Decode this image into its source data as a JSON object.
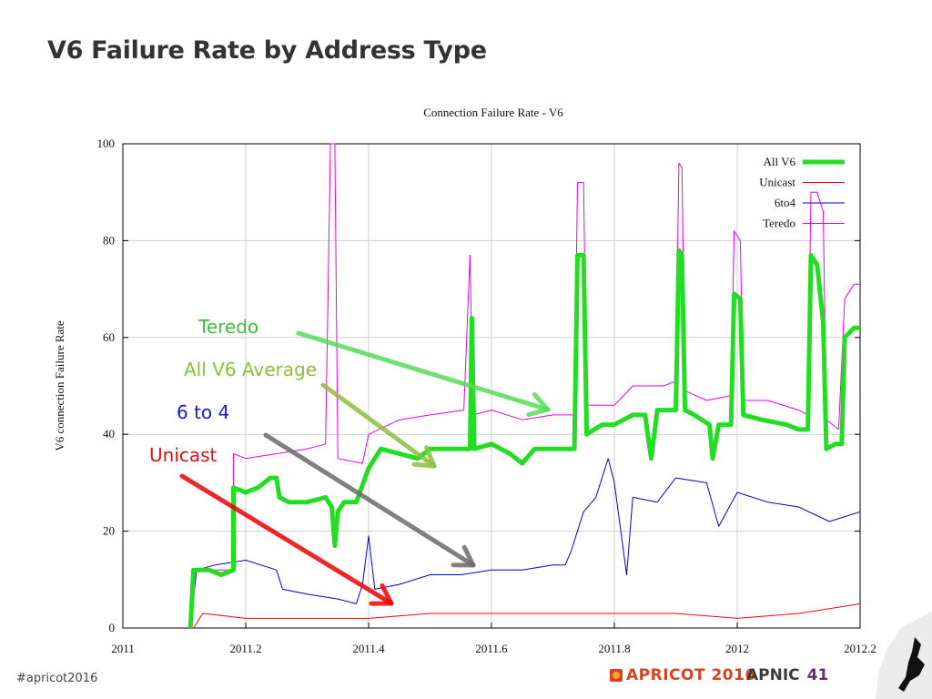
{
  "slide": {
    "title": "V6 Failure Rate by Address Type",
    "footer_hashtag": "#apricot2016",
    "logo_apricot": "APRICOT 2016",
    "logo_apnic": "APNIC",
    "logo_apnic_num": "41"
  },
  "annotations": [
    {
      "label": "Teredo",
      "color": "#3fbf3f"
    },
    {
      "label": "All V6 Average",
      "color": "#8cbf3f"
    },
    {
      "label": "6 to 4",
      "color": "#1a1ad6"
    },
    {
      "label": "Unicast",
      "color": "#e01010"
    }
  ],
  "chart_data": {
    "type": "line",
    "title": "Connection Failure Rate - V6",
    "xlabel": "",
    "ylabel": "V6 connection Failure Rate",
    "xlim": [
      2011,
      2012.2
    ],
    "ylim": [
      0,
      100
    ],
    "x_ticks": [
      "2011",
      "2011.2",
      "2011.4",
      "2011.6",
      "2011.8",
      "2012",
      "2012.2"
    ],
    "y_ticks": [
      "0",
      "20",
      "40",
      "60",
      "80",
      "100"
    ],
    "grid": true,
    "legend_position": "top-right",
    "series": [
      {
        "name": "All V6",
        "color": "#22dd22",
        "width": 5,
        "points": [
          [
            2011.11,
            0
          ],
          [
            2011.115,
            12
          ],
          [
            2011.14,
            12
          ],
          [
            2011.16,
            11
          ],
          [
            2011.18,
            12
          ],
          [
            2011.18,
            29
          ],
          [
            2011.2,
            28
          ],
          [
            2011.22,
            29
          ],
          [
            2011.24,
            31
          ],
          [
            2011.25,
            31
          ],
          [
            2011.255,
            27
          ],
          [
            2011.27,
            26
          ],
          [
            2011.3,
            26
          ],
          [
            2011.33,
            27
          ],
          [
            2011.34,
            25
          ],
          [
            2011.345,
            17
          ],
          [
            2011.35,
            24
          ],
          [
            2011.36,
            26
          ],
          [
            2011.38,
            26
          ],
          [
            2011.4,
            33
          ],
          [
            2011.42,
            37
          ],
          [
            2011.45,
            36
          ],
          [
            2011.48,
            35
          ],
          [
            2011.5,
            37
          ],
          [
            2011.54,
            37
          ],
          [
            2011.565,
            37
          ],
          [
            2011.568,
            64
          ],
          [
            2011.572,
            37
          ],
          [
            2011.6,
            38
          ],
          [
            2011.63,
            36
          ],
          [
            2011.65,
            34
          ],
          [
            2011.67,
            37
          ],
          [
            2011.7,
            37
          ],
          [
            2011.735,
            37
          ],
          [
            2011.74,
            77
          ],
          [
            2011.75,
            77
          ],
          [
            2011.755,
            40
          ],
          [
            2011.78,
            42
          ],
          [
            2011.8,
            42
          ],
          [
            2011.83,
            44
          ],
          [
            2011.85,
            44
          ],
          [
            2011.86,
            35
          ],
          [
            2011.87,
            45
          ],
          [
            2011.9,
            45
          ],
          [
            2011.905,
            78
          ],
          [
            2011.91,
            77
          ],
          [
            2011.915,
            45
          ],
          [
            2011.93,
            44
          ],
          [
            2011.955,
            42
          ],
          [
            2011.96,
            35
          ],
          [
            2011.97,
            42
          ],
          [
            2011.99,
            42
          ],
          [
            2011.995,
            69
          ],
          [
            2012.005,
            68
          ],
          [
            2012.01,
            44
          ],
          [
            2012.04,
            43
          ],
          [
            2012.08,
            42
          ],
          [
            2012.1,
            41
          ],
          [
            2012.115,
            41
          ],
          [
            2012.12,
            77
          ],
          [
            2012.13,
            75
          ],
          [
            2012.14,
            63
          ],
          [
            2012.145,
            37
          ],
          [
            2012.16,
            38
          ],
          [
            2012.17,
            38
          ],
          [
            2012.175,
            60
          ],
          [
            2012.19,
            62
          ],
          [
            2012.2,
            62
          ]
        ]
      },
      {
        "name": "Unicast",
        "color": "#ff0000",
        "width": 1,
        "points": [
          [
            2011.115,
            0
          ],
          [
            2011.13,
            3
          ],
          [
            2011.2,
            2
          ],
          [
            2011.3,
            2
          ],
          [
            2011.4,
            2
          ],
          [
            2011.5,
            3
          ],
          [
            2011.6,
            3
          ],
          [
            2011.7,
            3
          ],
          [
            2011.8,
            3
          ],
          [
            2011.9,
            3
          ],
          [
            2012,
            2
          ],
          [
            2012.1,
            3
          ],
          [
            2012.2,
            5
          ]
        ]
      },
      {
        "name": "6to4",
        "color": "#0000dd",
        "width": 1,
        "points": [
          [
            2011.11,
            0
          ],
          [
            2011.12,
            12
          ],
          [
            2011.15,
            13
          ],
          [
            2011.2,
            14
          ],
          [
            2011.25,
            12
          ],
          [
            2011.26,
            8
          ],
          [
            2011.3,
            7
          ],
          [
            2011.35,
            6
          ],
          [
            2011.38,
            5
          ],
          [
            2011.39,
            9
          ],
          [
            2011.4,
            19
          ],
          [
            2011.41,
            8
          ],
          [
            2011.45,
            9
          ],
          [
            2011.5,
            11
          ],
          [
            2011.55,
            11
          ],
          [
            2011.6,
            12
          ],
          [
            2011.65,
            12
          ],
          [
            2011.7,
            13
          ],
          [
            2011.72,
            13
          ],
          [
            2011.73,
            16
          ],
          [
            2011.75,
            24
          ],
          [
            2011.77,
            27
          ],
          [
            2011.79,
            35
          ],
          [
            2011.8,
            30
          ],
          [
            2011.82,
            11
          ],
          [
            2011.83,
            27
          ],
          [
            2011.87,
            26
          ],
          [
            2011.9,
            31
          ],
          [
            2011.95,
            30
          ],
          [
            2011.97,
            21
          ],
          [
            2012,
            28
          ],
          [
            2012.05,
            26
          ],
          [
            2012.1,
            25
          ],
          [
            2012.15,
            22
          ],
          [
            2012.2,
            24
          ]
        ]
      },
      {
        "name": "Teredo",
        "color": "#ee00ee",
        "width": 1,
        "points": [
          [
            2011.11,
            0
          ],
          [
            2011.115,
            12
          ],
          [
            2011.16,
            12
          ],
          [
            2011.18,
            12
          ],
          [
            2011.18,
            36
          ],
          [
            2011.2,
            35
          ],
          [
            2011.25,
            36
          ],
          [
            2011.3,
            37
          ],
          [
            2011.33,
            38
          ],
          [
            2011.338,
            100
          ],
          [
            2011.345,
            100
          ],
          [
            2011.35,
            35
          ],
          [
            2011.39,
            34
          ],
          [
            2011.4,
            40
          ],
          [
            2011.45,
            43
          ],
          [
            2011.5,
            44
          ],
          [
            2011.555,
            45
          ],
          [
            2011.565,
            77
          ],
          [
            2011.57,
            44
          ],
          [
            2011.6,
            45
          ],
          [
            2011.65,
            43
          ],
          [
            2011.7,
            44
          ],
          [
            2011.735,
            44
          ],
          [
            2011.74,
            92
          ],
          [
            2011.75,
            92
          ],
          [
            2011.755,
            46
          ],
          [
            2011.8,
            46
          ],
          [
            2011.83,
            50
          ],
          [
            2011.88,
            50
          ],
          [
            2011.9,
            51
          ],
          [
            2011.905,
            96
          ],
          [
            2011.91,
            95
          ],
          [
            2011.915,
            49
          ],
          [
            2011.95,
            47
          ],
          [
            2011.99,
            48
          ],
          [
            2011.995,
            82
          ],
          [
            2012.005,
            80
          ],
          [
            2012.01,
            47
          ],
          [
            2012.05,
            47
          ],
          [
            2012.1,
            45
          ],
          [
            2012.115,
            44
          ],
          [
            2012.12,
            90
          ],
          [
            2012.13,
            90
          ],
          [
            2012.14,
            86
          ],
          [
            2012.145,
            43
          ],
          [
            2012.165,
            41
          ],
          [
            2012.175,
            68
          ],
          [
            2012.19,
            71
          ],
          [
            2012.2,
            71
          ]
        ]
      }
    ]
  }
}
